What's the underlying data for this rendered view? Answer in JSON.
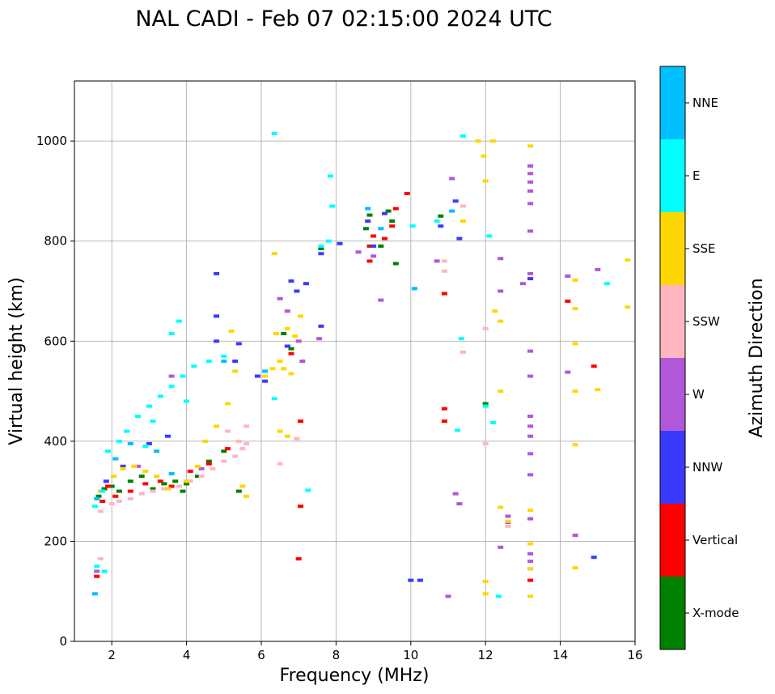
{
  "chart_data": {
    "type": "scatter",
    "title": "NAL CADI - Feb 07 02:15:00 2024 UTC",
    "xlabel": "Frequency (MHz)",
    "ylabel": "Virtual height (km)",
    "xlim": [
      1,
      16
    ],
    "ylim": [
      0,
      1120
    ],
    "xticks": [
      2,
      4,
      6,
      8,
      10,
      12,
      14,
      16
    ],
    "yticks": [
      0,
      200,
      400,
      600,
      800,
      1000
    ],
    "grid": true,
    "colorbar": {
      "title": "Azimuth Direction",
      "categories": [
        {
          "label": "X-mode",
          "color": "#008000"
        },
        {
          "label": "Vertical",
          "color": "#ff0000"
        },
        {
          "label": "NNW",
          "color": "#3a3aff"
        },
        {
          "label": "W",
          "color": "#b158d8"
        },
        {
          "label": "SSW",
          "color": "#ffb6c1"
        },
        {
          "label": "SSE",
          "color": "#ffd700"
        },
        {
          "label": "E",
          "color": "#00ffff"
        },
        {
          "label": "NNE",
          "color": "#00bfff"
        }
      ]
    },
    "series": [
      {
        "name": "X-mode",
        "points": [
          [
            1.65,
            290
          ],
          [
            1.8,
            305
          ],
          [
            2.0,
            310
          ],
          [
            2.2,
            300
          ],
          [
            2.5,
            320
          ],
          [
            2.8,
            330
          ],
          [
            3.1,
            305
          ],
          [
            3.4,
            315
          ],
          [
            3.7,
            320
          ],
          [
            4.0,
            315
          ],
          [
            4.6,
            360
          ],
          [
            5.0,
            380
          ],
          [
            5.4,
            300
          ],
          [
            6.6,
            615
          ],
          [
            6.8,
            585
          ],
          [
            7.6,
            785
          ],
          [
            8.8,
            825
          ],
          [
            8.9,
            852
          ],
          [
            9.2,
            790
          ],
          [
            9.4,
            860
          ],
          [
            9.5,
            840
          ],
          [
            9.6,
            755
          ],
          [
            10.8,
            850
          ],
          [
            12.0,
            475
          ],
          [
            3.9,
            300
          ],
          [
            4.3,
            330
          ]
        ]
      },
      {
        "name": "Vertical",
        "points": [
          [
            1.6,
            130
          ],
          [
            1.75,
            280
          ],
          [
            1.9,
            310
          ],
          [
            2.1,
            290
          ],
          [
            2.5,
            300
          ],
          [
            2.9,
            315
          ],
          [
            3.3,
            320
          ],
          [
            3.6,
            310
          ],
          [
            4.1,
            340
          ],
          [
            4.6,
            355
          ],
          [
            5.1,
            385
          ],
          [
            6.8,
            575
          ],
          [
            7.05,
            440
          ],
          [
            7.05,
            270
          ],
          [
            7.0,
            165
          ],
          [
            8.9,
            760
          ],
          [
            8.9,
            790
          ],
          [
            9.0,
            810
          ],
          [
            9.3,
            805
          ],
          [
            9.5,
            830
          ],
          [
            9.6,
            865
          ],
          [
            9.9,
            895
          ],
          [
            10.9,
            465
          ],
          [
            10.9,
            440
          ],
          [
            10.9,
            695
          ],
          [
            13.2,
            122
          ],
          [
            14.2,
            680
          ],
          [
            14.9,
            550
          ]
        ]
      },
      {
        "name": "NNW",
        "points": [
          [
            1.85,
            320
          ],
          [
            2.3,
            350
          ],
          [
            3.0,
            395
          ],
          [
            3.5,
            410
          ],
          [
            4.8,
            600
          ],
          [
            4.8,
            650
          ],
          [
            4.8,
            735
          ],
          [
            5.3,
            560
          ],
          [
            5.4,
            595
          ],
          [
            5.9,
            530
          ],
          [
            6.1,
            520
          ],
          [
            6.7,
            590
          ],
          [
            6.8,
            720
          ],
          [
            6.95,
            700
          ],
          [
            7.2,
            715
          ],
          [
            7.6,
            630
          ],
          [
            7.6,
            775
          ],
          [
            8.1,
            795
          ],
          [
            8.85,
            840
          ],
          [
            9.0,
            790
          ],
          [
            9.3,
            855
          ],
          [
            10.0,
            122
          ],
          [
            10.25,
            122
          ],
          [
            10.8,
            830
          ],
          [
            11.2,
            880
          ],
          [
            11.3,
            805
          ],
          [
            13.2,
            725
          ],
          [
            14.9,
            168
          ]
        ]
      },
      {
        "name": "W",
        "points": [
          [
            1.6,
            140
          ],
          [
            2.7,
            350
          ],
          [
            3.6,
            530
          ],
          [
            4.4,
            345
          ],
          [
            6.5,
            685
          ],
          [
            6.7,
            660
          ],
          [
            7.0,
            600
          ],
          [
            7.1,
            560
          ],
          [
            7.55,
            605
          ],
          [
            8.6,
            778
          ],
          [
            9.0,
            770
          ],
          [
            9.2,
            682
          ],
          [
            10.7,
            760
          ],
          [
            11.1,
            925
          ],
          [
            11.2,
            295
          ],
          [
            11.3,
            275
          ],
          [
            12.4,
            765
          ],
          [
            12.4,
            700
          ],
          [
            12.4,
            188
          ],
          [
            12.6,
            250
          ],
          [
            12.6,
            238
          ],
          [
            13.0,
            715
          ],
          [
            13.2,
            950
          ],
          [
            13.2,
            935
          ],
          [
            13.2,
            918
          ],
          [
            13.2,
            900
          ],
          [
            13.2,
            875
          ],
          [
            13.2,
            820
          ],
          [
            13.2,
            735
          ],
          [
            13.2,
            580
          ],
          [
            13.2,
            530
          ],
          [
            13.2,
            450
          ],
          [
            13.2,
            430
          ],
          [
            13.2,
            410
          ],
          [
            13.2,
            375
          ],
          [
            13.2,
            333
          ],
          [
            13.2,
            245
          ],
          [
            13.2,
            175
          ],
          [
            13.2,
            160
          ],
          [
            13.2,
            145
          ],
          [
            14.2,
            730
          ],
          [
            14.2,
            538
          ],
          [
            14.4,
            212
          ],
          [
            15.0,
            743
          ],
          [
            11.0,
            90
          ]
        ]
      },
      {
        "name": "SSW",
        "points": [
          [
            1.7,
            260
          ],
          [
            2.0,
            275
          ],
          [
            2.2,
            280
          ],
          [
            2.5,
            285
          ],
          [
            2.8,
            295
          ],
          [
            3.1,
            300
          ],
          [
            3.4,
            305
          ],
          [
            3.8,
            310
          ],
          [
            4.1,
            320
          ],
          [
            4.4,
            330
          ],
          [
            4.7,
            345
          ],
          [
            5.0,
            360
          ],
          [
            5.3,
            370
          ],
          [
            5.5,
            385
          ],
          [
            5.6,
            395
          ],
          [
            5.4,
            400
          ],
          [
            5.1,
            420
          ],
          [
            5.6,
            430
          ],
          [
            6.5,
            355
          ],
          [
            6.95,
            405
          ],
          [
            10.9,
            740
          ],
          [
            10.9,
            760
          ],
          [
            11.4,
            870
          ],
          [
            11.4,
            578
          ],
          [
            12.0,
            625
          ],
          [
            12.0,
            395
          ],
          [
            12.6,
            230
          ],
          [
            1.7,
            165
          ]
        ]
      },
      {
        "name": "SSE",
        "points": [
          [
            1.7,
            300
          ],
          [
            2.05,
            330
          ],
          [
            2.3,
            345
          ],
          [
            2.6,
            350
          ],
          [
            2.9,
            340
          ],
          [
            3.2,
            330
          ],
          [
            3.5,
            305
          ],
          [
            4.0,
            320
          ],
          [
            4.3,
            350
          ],
          [
            4.5,
            400
          ],
          [
            4.8,
            430
          ],
          [
            5.1,
            475
          ],
          [
            5.3,
            540
          ],
          [
            5.2,
            620
          ],
          [
            5.5,
            310
          ],
          [
            5.6,
            290
          ],
          [
            6.1,
            530
          ],
          [
            6.3,
            545
          ],
          [
            6.5,
            560
          ],
          [
            6.6,
            545
          ],
          [
            6.8,
            535
          ],
          [
            6.4,
            615
          ],
          [
            6.7,
            625
          ],
          [
            6.9,
            610
          ],
          [
            6.35,
            775
          ],
          [
            6.5,
            420
          ],
          [
            6.7,
            410
          ],
          [
            7.05,
            650
          ],
          [
            11.4,
            840
          ],
          [
            11.8,
            1000
          ],
          [
            11.95,
            970
          ],
          [
            12.0,
            920
          ],
          [
            12.2,
            1000
          ],
          [
            12.25,
            660
          ],
          [
            12.4,
            640
          ],
          [
            12.4,
            500
          ],
          [
            12.4,
            268
          ],
          [
            12.6,
            240
          ],
          [
            12.0,
            120
          ],
          [
            12.0,
            95
          ],
          [
            13.2,
            990
          ],
          [
            13.2,
            262
          ],
          [
            13.2,
            195
          ],
          [
            13.2,
            145
          ],
          [
            13.2,
            90
          ],
          [
            14.4,
            722
          ],
          [
            14.4,
            665
          ],
          [
            14.4,
            595
          ],
          [
            14.4,
            500
          ],
          [
            14.4,
            393
          ],
          [
            14.4,
            147
          ],
          [
            15.0,
            503
          ],
          [
            15.8,
            762
          ],
          [
            15.8,
            668
          ]
        ]
      },
      {
        "name": "E",
        "points": [
          [
            1.55,
            270
          ],
          [
            1.75,
            300
          ],
          [
            1.9,
            380
          ],
          [
            2.2,
            400
          ],
          [
            2.4,
            420
          ],
          [
            2.7,
            450
          ],
          [
            3.0,
            470
          ],
          [
            3.3,
            490
          ],
          [
            3.6,
            510
          ],
          [
            3.9,
            530
          ],
          [
            4.2,
            550
          ],
          [
            4.6,
            560
          ],
          [
            5.0,
            570
          ],
          [
            3.8,
            640
          ],
          [
            3.6,
            615
          ],
          [
            4.0,
            480
          ],
          [
            2.9,
            390
          ],
          [
            3.1,
            440
          ],
          [
            1.6,
            150
          ],
          [
            1.8,
            140
          ],
          [
            6.35,
            1015
          ],
          [
            6.35,
            485
          ],
          [
            7.25,
            302
          ],
          [
            7.6,
            790
          ],
          [
            7.8,
            800
          ],
          [
            7.85,
            930
          ],
          [
            7.9,
            870
          ],
          [
            10.05,
            830
          ],
          [
            10.7,
            840
          ],
          [
            11.25,
            422
          ],
          [
            11.35,
            605
          ],
          [
            11.4,
            1010
          ],
          [
            12.1,
            810
          ],
          [
            12.2,
            437
          ],
          [
            12.35,
            90
          ],
          [
            12.0,
            470
          ],
          [
            15.25,
            715
          ]
        ]
      },
      {
        "name": "NNE",
        "points": [
          [
            1.6,
            285
          ],
          [
            2.1,
            365
          ],
          [
            2.5,
            395
          ],
          [
            3.2,
            380
          ],
          [
            5.0,
            560
          ],
          [
            6.1,
            540
          ],
          [
            8.85,
            865
          ],
          [
            9.2,
            825
          ],
          [
            10.1,
            705
          ],
          [
            11.1,
            860
          ],
          [
            1.55,
            95
          ],
          [
            3.6,
            335
          ]
        ]
      }
    ]
  }
}
